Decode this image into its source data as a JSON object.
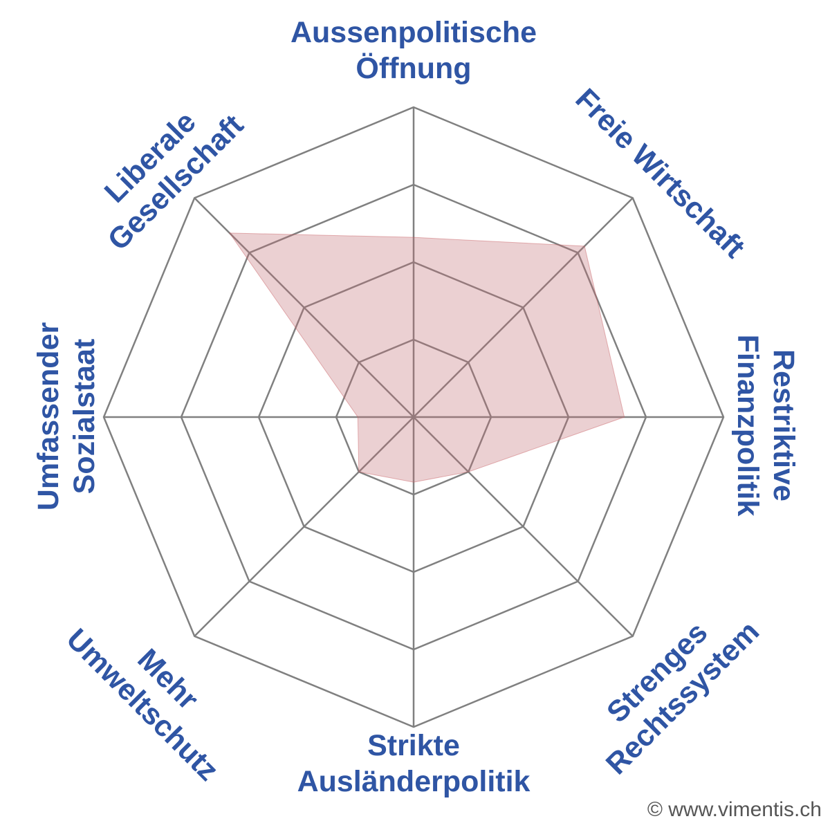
{
  "chart_data": {
    "type": "radar",
    "axes": [
      [
        "Aussenpolitische",
        "Öffnung"
      ],
      [
        "Freie Wirtschaft"
      ],
      [
        "Restriktive",
        "Finanzpolitik"
      ],
      [
        "Strenges",
        "Rechtssystem"
      ],
      [
        "Strikte",
        "Ausländerpolitik"
      ],
      [
        "Mehr",
        "Umweltschutz"
      ],
      [
        "Umfassender",
        "Sozialstaat"
      ],
      [
        "Liberale",
        "Gesellschaft"
      ]
    ],
    "rmax": 100,
    "rings": [
      25,
      50,
      75,
      100
    ],
    "values": [
      58,
      78,
      68,
      25,
      21,
      25,
      18,
      84
    ],
    "fill_color": "#c06e73",
    "grid_color": "#808080",
    "label_color": "#2f55a4"
  },
  "footer": {
    "credit": "© www.vimentis.ch"
  }
}
